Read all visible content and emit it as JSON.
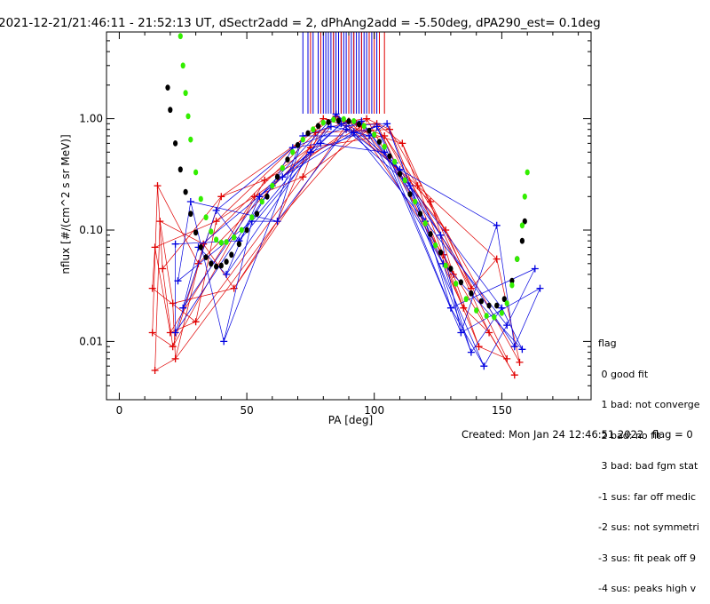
{
  "title": "2021-12-21/21:46:11 - 21:52:13 UT, dSectr2add = 2, dPhAng2add = -5.50deg, dPA290_est=   0.1deg",
  "footer": {
    "created": "Created: Mon Jan 24 12:46:51 2022",
    "flag": "flag = 0"
  },
  "legend": {
    "header": "flag",
    "items": [
      " 0 good fit",
      " 1 bad: not converge",
      " 2 bad: no fit",
      " 3 bad: bad fgm stat",
      "-1 sus: far off medic",
      "-2 sus: not symmetri",
      "-3 sus: fit peak off 9",
      "-4 sus: peaks high v"
    ]
  },
  "chart_data": {
    "type": "scatter",
    "title": "2021-12-21/21:46:11 - 21:52:13 UT, dSectr2add = 2, dPhAng2add = -5.50deg, dPA290_est=   0.1deg",
    "xlabel": "PA [deg]",
    "ylabel": "nflux [#/(cm^2 s sr MeV)]",
    "xlim": [
      -5,
      185
    ],
    "ylim": [
      0.003,
      6
    ],
    "yscale": "log",
    "xticks": [
      0,
      50,
      100,
      150
    ],
    "yticks": [
      {
        "value": 0.01,
        "label": "0.01"
      },
      {
        "value": 0.1,
        "label": "0.10"
      },
      {
        "value": 1.0,
        "label": "1.00"
      }
    ],
    "series": [
      {
        "color": "#e00000",
        "marker": "plus",
        "x": [
          13,
          14,
          13,
          15,
          16,
          14,
          17,
          21,
          20,
          21,
          22,
          30,
          31,
          33,
          38,
          40,
          45,
          53,
          57,
          62,
          72,
          75,
          77,
          80,
          85,
          90,
          93,
          95,
          97,
          101,
          104,
          106,
          111,
          117,
          122,
          127,
          128,
          131,
          135,
          138,
          141,
          145,
          148,
          152,
          155,
          157
        ],
        "y": [
          0.012,
          0.0055,
          0.03,
          0.25,
          0.12,
          0.07,
          0.045,
          0.022,
          0.012,
          0.009,
          0.007,
          0.015,
          0.05,
          0.075,
          0.12,
          0.2,
          0.03,
          0.2,
          0.28,
          0.12,
          0.3,
          0.55,
          0.75,
          1.0,
          1.05,
          0.95,
          0.9,
          0.85,
          1.0,
          0.9,
          0.7,
          0.8,
          0.6,
          0.25,
          0.18,
          0.06,
          0.1,
          0.04,
          0.02,
          0.03,
          0.009,
          0.012,
          0.055,
          0.007,
          0.005,
          0.0065
        ]
      },
      {
        "color": "#0000e0",
        "marker": "plus",
        "x": [
          22,
          23,
          25,
          22,
          28,
          31,
          38,
          41,
          42,
          47,
          52,
          55,
          60,
          62,
          64,
          68,
          72,
          75,
          79,
          83,
          85,
          87,
          89,
          92,
          95,
          98,
          101,
          104,
          105,
          108,
          110,
          114,
          120,
          126,
          127,
          130,
          134,
          138,
          143,
          148,
          150,
          152,
          155,
          158,
          163,
          165
        ],
        "y": [
          0.075,
          0.035,
          0.02,
          0.012,
          0.18,
          0.07,
          0.15,
          0.01,
          0.04,
          0.08,
          0.12,
          0.2,
          0.25,
          0.12,
          0.3,
          0.55,
          0.7,
          0.5,
          0.6,
          0.85,
          1.1,
          0.9,
          0.8,
          0.75,
          0.95,
          0.7,
          0.85,
          0.5,
          0.9,
          0.4,
          0.35,
          0.25,
          0.12,
          0.09,
          0.05,
          0.02,
          0.012,
          0.008,
          0.006,
          0.11,
          0.02,
          0.014,
          0.009,
          0.0085,
          0.045,
          0.03
        ]
      },
      {
        "color": "#000000",
        "marker": "dot",
        "x": [
          19,
          20,
          22,
          24,
          26,
          28,
          30,
          32,
          34,
          36,
          38,
          40,
          42,
          44,
          47,
          50,
          54,
          58,
          62,
          66,
          70,
          74,
          78,
          82,
          86,
          90,
          94,
          98,
          102,
          106,
          110,
          114,
          118,
          122,
          126,
          130,
          134,
          138,
          142,
          145,
          148,
          151,
          154,
          156,
          158,
          159
        ],
        "y": [
          1.9,
          1.2,
          0.6,
          0.35,
          0.22,
          0.14,
          0.095,
          0.07,
          0.057,
          0.05,
          0.047,
          0.048,
          0.052,
          0.06,
          0.075,
          0.1,
          0.14,
          0.2,
          0.3,
          0.43,
          0.58,
          0.74,
          0.86,
          0.93,
          0.96,
          0.95,
          0.89,
          0.78,
          0.62,
          0.46,
          0.32,
          0.21,
          0.14,
          0.092,
          0.063,
          0.045,
          0.034,
          0.027,
          0.023,
          0.021,
          0.021,
          0.024,
          0.035,
          0.055,
          0.08,
          0.12
        ]
      },
      {
        "color": "#33ee00",
        "marker": "dot",
        "x": [
          24,
          25,
          26,
          27,
          28,
          30,
          32,
          34,
          36,
          38,
          40,
          42,
          45,
          48,
          52,
          56,
          60,
          64,
          68,
          72,
          76,
          80,
          84,
          88,
          92,
          96,
          100,
          104,
          108,
          112,
          116,
          120,
          124,
          128,
          132,
          136,
          140,
          144,
          147,
          150,
          152,
          154,
          156,
          158,
          159,
          160
        ],
        "y": [
          5.5,
          3.0,
          1.7,
          1.05,
          0.65,
          0.33,
          0.19,
          0.13,
          0.097,
          0.082,
          0.077,
          0.078,
          0.086,
          0.1,
          0.13,
          0.18,
          0.25,
          0.36,
          0.5,
          0.65,
          0.8,
          0.92,
          0.98,
          0.99,
          0.95,
          0.86,
          0.72,
          0.56,
          0.41,
          0.28,
          0.18,
          0.115,
          0.073,
          0.048,
          0.033,
          0.024,
          0.019,
          0.017,
          0.0165,
          0.018,
          0.022,
          0.032,
          0.055,
          0.11,
          0.2,
          0.33
        ]
      }
    ],
    "vertical_markers": [
      {
        "color": "#0000e0",
        "x": [
          72,
          74,
          76,
          78,
          80,
          81,
          82,
          83,
          84,
          85,
          86,
          87,
          88,
          89,
          90,
          91,
          92,
          93,
          94,
          95,
          96,
          97,
          99,
          101
        ]
      },
      {
        "color": "#e00000",
        "x": [
          75,
          79,
          84,
          87,
          90,
          92,
          95,
          98,
          100,
          102,
          104
        ]
      }
    ]
  }
}
